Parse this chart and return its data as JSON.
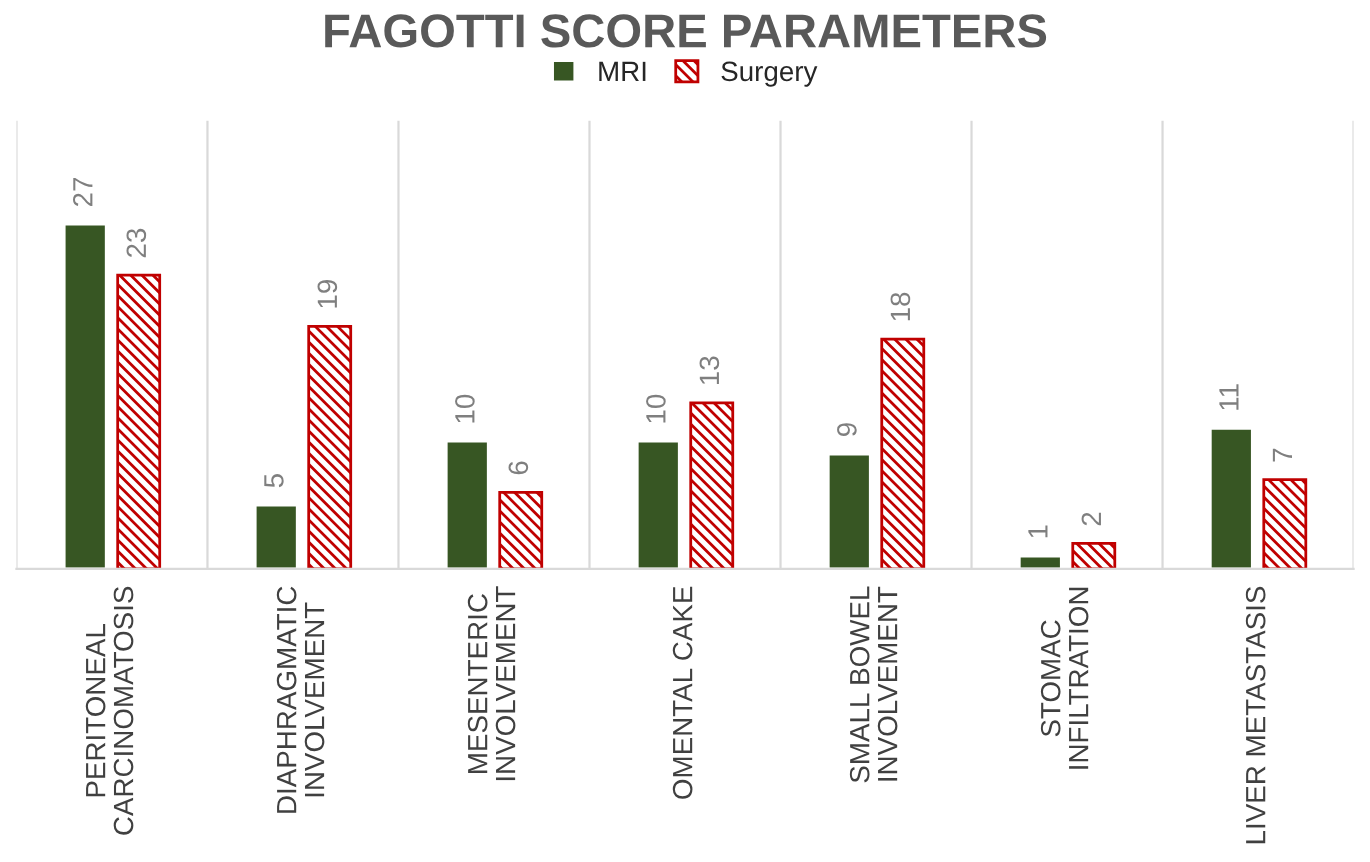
{
  "chart_data": {
    "type": "bar",
    "title": "FAGOTTI SCORE PARAMETERS",
    "categories": [
      "PERITONEAL\nCARCINOMATOSIS",
      "DIAPHRAGMATIC\nINVOLVEMENT",
      "MESENTERIC\nINVOLVEMENT",
      "OMENTAL CAKE",
      "SMALL BOWEL\nINVOLVEMENT",
      "STOMAC\nINFILTRATION",
      "LIVER METASTASIS"
    ],
    "series": [
      {
        "name": "MRI",
        "color": "#375623",
        "values": [
          27,
          5,
          10,
          10,
          9,
          1,
          11
        ]
      },
      {
        "name": "Surgery",
        "color": "#c00000",
        "values": [
          23,
          19,
          6,
          13,
          18,
          2,
          7
        ]
      }
    ],
    "data_labels": true,
    "grid": "x",
    "legend": "top"
  }
}
